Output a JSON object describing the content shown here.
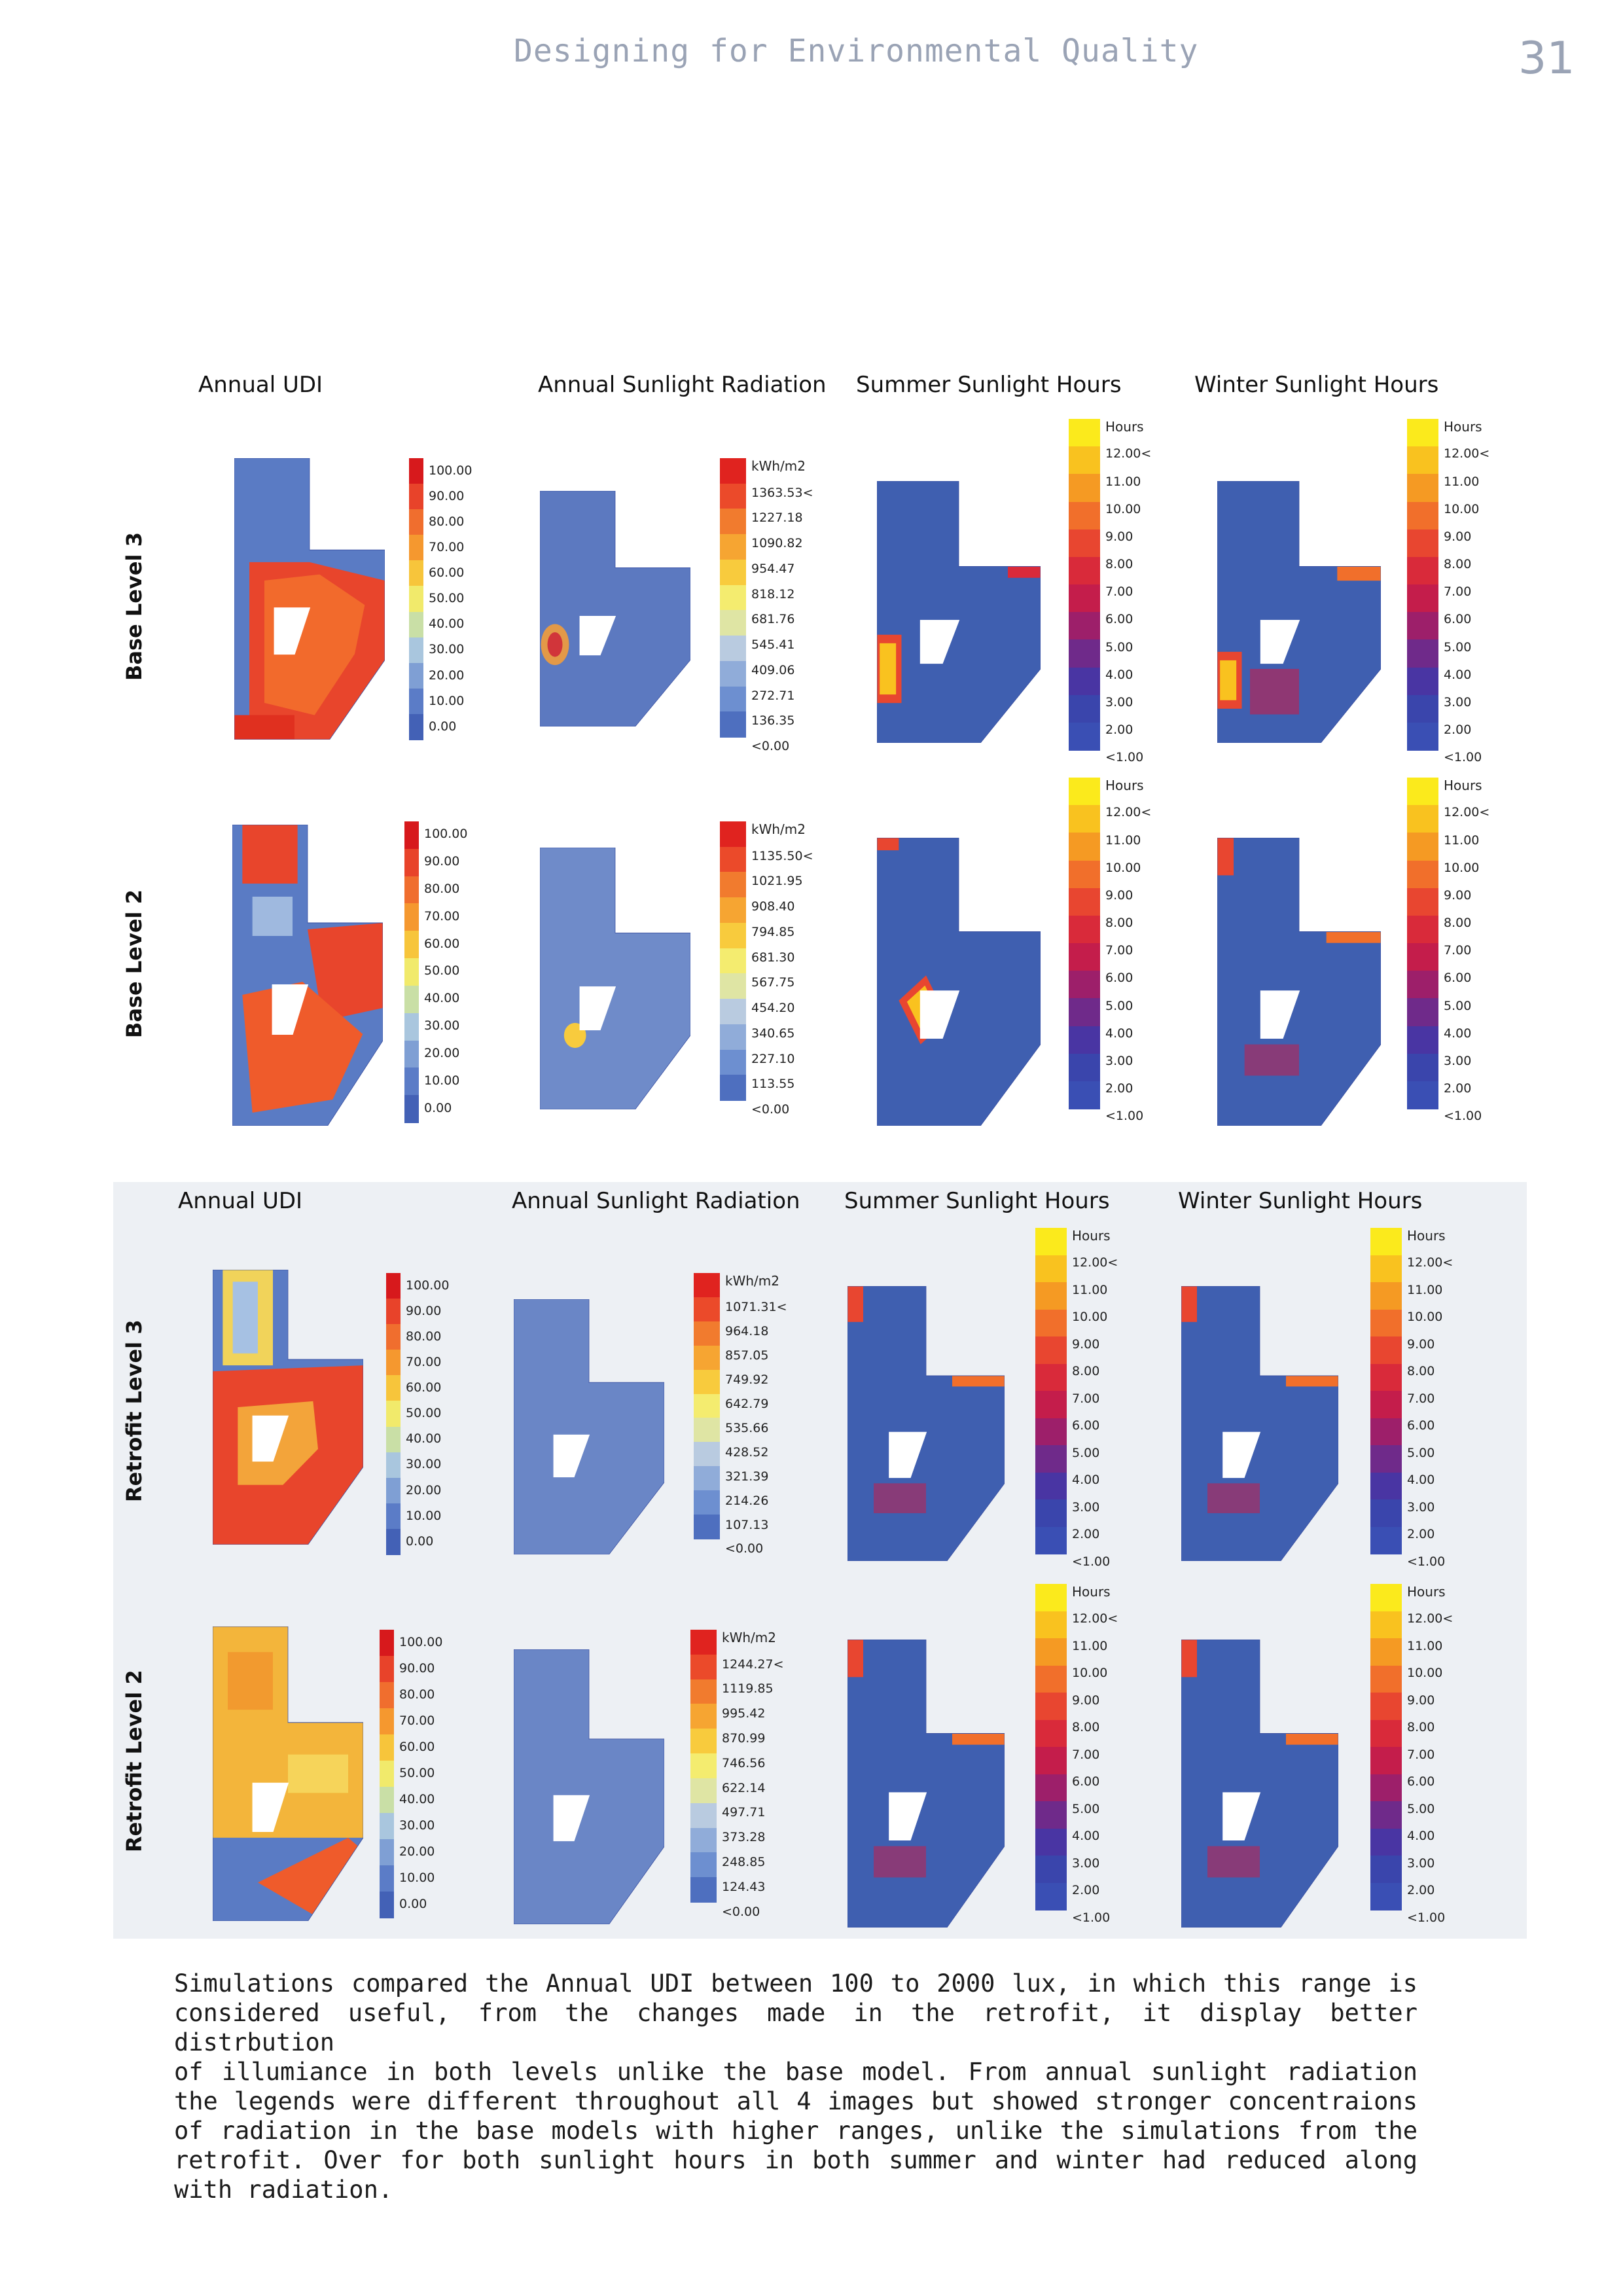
{
  "header": {
    "title": "Designing for Environmental Quality",
    "page_number": "31"
  },
  "columns": [
    "Annual UDI",
    "Annual Sunlight Radiation",
    "Summer Sunlight Hours",
    "Winter Sunlight Hours"
  ],
  "rows": {
    "base_level_3": "Base Level 3",
    "base_level_2": "Base Level 2",
    "retrofit_level_3": "Retrofit Level 3",
    "retrofit_level_2": "Retrofit Level 2"
  },
  "legends": {
    "udi": {
      "unit": "",
      "labels": [
        "100.00",
        "90.00",
        "80.00",
        "70.00",
        "60.00",
        "50.00",
        "40.00",
        "30.00",
        "20.00",
        "10.00",
        "0.00"
      ]
    },
    "rad_base3": {
      "unit": "kWh/m2",
      "labels": [
        "1363.53<",
        "1227.18",
        "1090.82",
        "954.47",
        "818.12",
        "681.76",
        "545.41",
        "409.06",
        "272.71",
        "136.35",
        "<0.00"
      ]
    },
    "rad_base2": {
      "unit": "kWh/m2",
      "labels": [
        "1135.50<",
        "1021.95",
        "908.40",
        "794.85",
        "681.30",
        "567.75",
        "454.20",
        "340.65",
        "227.10",
        "113.55",
        "<0.00"
      ]
    },
    "rad_retro3": {
      "unit": "kWh/m2",
      "labels": [
        "1071.31<",
        "964.18",
        "857.05",
        "749.92",
        "642.79",
        "535.66",
        "428.52",
        "321.39",
        "214.26",
        "107.13",
        "<0.00"
      ]
    },
    "rad_retro2": {
      "unit": "kWh/m2",
      "labels": [
        "1244.27<",
        "1119.85",
        "995.42",
        "870.99",
        "746.56",
        "622.14",
        "497.71",
        "373.28",
        "248.85",
        "124.43",
        "<0.00"
      ]
    },
    "hours": {
      "unit": "Hours",
      "labels": [
        "12.00<",
        "11.00",
        "10.00",
        "9.00",
        "8.00",
        "7.00",
        "6.00",
        "5.00",
        "4.00",
        "3.00",
        "2.00",
        "<1.00"
      ]
    }
  },
  "colors": {
    "udi_scale": [
      "#d7191c",
      "#e8432a",
      "#f06e2e",
      "#f5982f",
      "#f7c53b",
      "#f1ea6b",
      "#c9dfa6",
      "#a9c6de",
      "#7f9fd4",
      "#5b7cc7",
      "#4361b6"
    ],
    "rad_scale": [
      "#e0231f",
      "#eb4a2a",
      "#f17b2e",
      "#f6a532",
      "#f8cb3d",
      "#f4ec6f",
      "#dfe5a4",
      "#b9cbe0",
      "#90acd9",
      "#6d8fd0",
      "#4e6fbf"
    ],
    "hours_scale": [
      "#fbea1c",
      "#f9c21f",
      "#f59a23",
      "#f16f2b",
      "#e84630",
      "#d92a3a",
      "#c41d4b",
      "#9d1f6a",
      "#6f2a8a",
      "#4935a3",
      "#3a45ac",
      "#3a4fb4"
    ],
    "building_fill": "#3f5fb0",
    "panel_bg": "#edf0f4"
  },
  "body_text": [
    "Simulations compared the Annual UDI between 100 to 2000 lux, in which this range is",
    "considered useful, from the changes made in the retrofit, it display better distrbution",
    "of illumiance in both levels unlike the base model. From annual sunlight radiation",
    "the legends were different throughout all 4 images but showed stronger concentraions",
    "of radiation in the base models with higher ranges, unlike the simulations from the",
    "retrofit. Over for both sunlight hours in both summer and winter had reduced along",
    "with radiation."
  ]
}
